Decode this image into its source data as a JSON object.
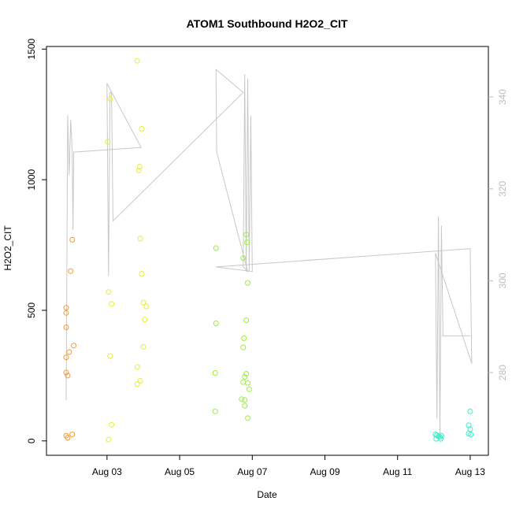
{
  "chart_data": {
    "type": "scatter",
    "title": "ATOM1 Southbound H2O2_CIT",
    "xlabel": "Date",
    "ylabel": "H2O2_CIT",
    "x_range_days": [
      "2019-08-01T08:00",
      "2019-08-13T12:00"
    ],
    "ylim": [
      -55,
      1510
    ],
    "y2lim": [
      262,
      351
    ],
    "x_ticks": [
      {
        "date": "2019-08-03",
        "label": "Aug 03"
      },
      {
        "date": "2019-08-05",
        "label": "Aug 05"
      },
      {
        "date": "2019-08-07",
        "label": "Aug 07"
      },
      {
        "date": "2019-08-09",
        "label": "Aug 09"
      },
      {
        "date": "2019-08-11",
        "label": "Aug 11"
      },
      {
        "date": "2019-08-13",
        "label": "Aug 13"
      }
    ],
    "y_ticks": [
      {
        "value": 0,
        "label": "0"
      },
      {
        "value": 500,
        "label": "500"
      },
      {
        "value": 1000,
        "label": "1000"
      },
      {
        "value": 1500,
        "label": "1500"
      }
    ],
    "y2_ticks": [
      {
        "value": 280,
        "label": "280"
      },
      {
        "value": 300,
        "label": "300"
      },
      {
        "value": 320,
        "label": "320"
      },
      {
        "value": 340,
        "label": "340"
      }
    ],
    "grid": false,
    "legend": "none",
    "line_color": "#c8c8c8",
    "points": [
      {
        "x": "2019-08-01T21:00",
        "y": 510,
        "color": "#f39c37"
      },
      {
        "x": "2019-08-01T21:00",
        "y": 490,
        "color": "#f39c37"
      },
      {
        "x": "2019-08-01T21:00",
        "y": 435,
        "color": "#f39c37"
      },
      {
        "x": "2019-08-01T21:00",
        "y": 320,
        "color": "#f39c37"
      },
      {
        "x": "2019-08-01T21:00",
        "y": 262,
        "color": "#f39c37"
      },
      {
        "x": "2019-08-01T22:00",
        "y": 250,
        "color": "#f39c37"
      },
      {
        "x": "2019-08-01T21:00",
        "y": 20,
        "color": "#f39c37"
      },
      {
        "x": "2019-08-01T22:00",
        "y": 12,
        "color": "#f39c37"
      },
      {
        "x": "2019-08-01T23:00",
        "y": 340,
        "color": "#f39c37"
      },
      {
        "x": "2019-08-02T01:00",
        "y": 770,
        "color": "#f39c37"
      },
      {
        "x": "2019-08-02T00:00",
        "y": 650,
        "color": "#f39c37"
      },
      {
        "x": "2019-08-02T02:00",
        "y": 365,
        "color": "#f39c37"
      },
      {
        "x": "2019-08-02T01:00",
        "y": 25,
        "color": "#f39c37"
      },
      {
        "x": "2019-08-03T00:30",
        "y": 1145,
        "color": "#e6ee3a"
      },
      {
        "x": "2019-08-03T02:00",
        "y": 1310,
        "color": "#e6ee3a"
      },
      {
        "x": "2019-08-03T01:00",
        "y": 570,
        "color": "#e6ee3a"
      },
      {
        "x": "2019-08-03T03:00",
        "y": 525,
        "color": "#e6ee3a"
      },
      {
        "x": "2019-08-03T02:00",
        "y": 325,
        "color": "#e6ee3a"
      },
      {
        "x": "2019-08-03T03:00",
        "y": 62,
        "color": "#e6ee3a"
      },
      {
        "x": "2019-08-03T01:00",
        "y": 5,
        "color": "#e6ee3a"
      },
      {
        "x": "2019-08-03T20:00",
        "y": 1455,
        "color": "#e6ee3a"
      },
      {
        "x": "2019-08-03T23:00",
        "y": 1195,
        "color": "#e6ee3a"
      },
      {
        "x": "2019-08-03T21:00",
        "y": 1035,
        "color": "#e6ee3a"
      },
      {
        "x": "2019-08-03T21:30",
        "y": 1050,
        "color": "#e6ee3a"
      },
      {
        "x": "2019-08-03T22:00",
        "y": 775,
        "color": "#e6ee3a"
      },
      {
        "x": "2019-08-03T23:00",
        "y": 640,
        "color": "#e6ee3a"
      },
      {
        "x": "2019-08-04T00:00",
        "y": 530,
        "color": "#e6ee3a"
      },
      {
        "x": "2019-08-04T02:00",
        "y": 515,
        "color": "#e6ee3a"
      },
      {
        "x": "2019-08-04T01:00",
        "y": 465,
        "color": "#e6ee3a"
      },
      {
        "x": "2019-08-04T00:00",
        "y": 360,
        "color": "#e6ee3a"
      },
      {
        "x": "2019-08-03T20:00",
        "y": 283,
        "color": "#e6ee3a"
      },
      {
        "x": "2019-08-03T22:00",
        "y": 230,
        "color": "#e6ee3a"
      },
      {
        "x": "2019-08-03T20:00",
        "y": 218,
        "color": "#e6ee3a"
      },
      {
        "x": "2019-08-06T00:00",
        "y": 738,
        "color": "#9cf03c"
      },
      {
        "x": "2019-08-06T00:00",
        "y": 450,
        "color": "#9cf03c"
      },
      {
        "x": "2019-08-05T23:30",
        "y": 260,
        "color": "#9cf03c"
      },
      {
        "x": "2019-08-05T23:30",
        "y": 113,
        "color": "#9cf03c"
      },
      {
        "x": "2019-08-06T18:00",
        "y": 700,
        "color": "#9cf03c"
      },
      {
        "x": "2019-08-06T20:00",
        "y": 790,
        "color": "#9cf03c"
      },
      {
        "x": "2019-08-06T20:30",
        "y": 760,
        "color": "#9cf03c"
      },
      {
        "x": "2019-08-06T21:00",
        "y": 605,
        "color": "#9cf03c"
      },
      {
        "x": "2019-08-06T20:00",
        "y": 462,
        "color": "#9cf03c"
      },
      {
        "x": "2019-08-06T18:30",
        "y": 393,
        "color": "#9cf03c"
      },
      {
        "x": "2019-08-06T18:00",
        "y": 358,
        "color": "#9cf03c"
      },
      {
        "x": "2019-08-06T20:00",
        "y": 257,
        "color": "#9cf03c"
      },
      {
        "x": "2019-08-06T19:00",
        "y": 245,
        "color": "#9cf03c"
      },
      {
        "x": "2019-08-06T18:00",
        "y": 225,
        "color": "#9cf03c"
      },
      {
        "x": "2019-08-06T21:00",
        "y": 222,
        "color": "#9cf03c"
      },
      {
        "x": "2019-08-06T22:00",
        "y": 198,
        "color": "#9cf03c"
      },
      {
        "x": "2019-08-06T17:00",
        "y": 160,
        "color": "#9cf03c"
      },
      {
        "x": "2019-08-06T19:00",
        "y": 157,
        "color": "#9cf03c"
      },
      {
        "x": "2019-08-06T19:00",
        "y": 135,
        "color": "#9cf03c"
      },
      {
        "x": "2019-08-06T21:00",
        "y": 87,
        "color": "#9cf03c"
      },
      {
        "x": "2019-08-12T01:00",
        "y": 25,
        "color": "#37efc6"
      },
      {
        "x": "2019-08-12T02:00",
        "y": 22,
        "color": "#37efc6"
      },
      {
        "x": "2019-08-12T03:00",
        "y": 18,
        "color": "#37efc6"
      },
      {
        "x": "2019-08-12T04:00",
        "y": 15,
        "color": "#37efc6"
      },
      {
        "x": "2019-08-12T01:30",
        "y": 8,
        "color": "#37efc6"
      },
      {
        "x": "2019-08-12T05:00",
        "y": 20,
        "color": "#37efc6"
      },
      {
        "x": "2019-08-12T04:30",
        "y": 8,
        "color": "#37efc6"
      },
      {
        "x": "2019-08-13T00:00",
        "y": 113,
        "color": "#37efc6"
      },
      {
        "x": "2019-08-12T23:00",
        "y": 60,
        "color": "#37efc6"
      },
      {
        "x": "2019-08-13T00:00",
        "y": 45,
        "color": "#37efc6"
      },
      {
        "x": "2019-08-12T23:00",
        "y": 28,
        "color": "#37efc6"
      },
      {
        "x": "2019-08-13T00:30",
        "y": 25,
        "color": "#37efc6"
      }
    ],
    "secondary_line": [
      {
        "x": "2019-08-01T21:00",
        "y2": 274
      },
      {
        "x": "2019-08-01T22:00",
        "y2": 336
      },
      {
        "x": "2019-08-01T23:00",
        "y2": 323
      },
      {
        "x": "2019-08-02T00:00",
        "y2": 335
      },
      {
        "x": "2019-08-02T01:00",
        "y2": 328
      },
      {
        "x": "2019-08-02T01:30",
        "y2": 311
      },
      {
        "x": "2019-08-02T02:00",
        "y2": 328
      },
      {
        "x": "2019-08-03T22:00",
        "y2": 329
      },
      {
        "x": "2019-08-03T22:30",
        "y2": 329
      },
      {
        "x": "2019-08-03T00:00",
        "y2": 343
      },
      {
        "x": "2019-08-03T01:00",
        "y2": 301
      },
      {
        "x": "2019-08-03T02:00",
        "y2": 341
      },
      {
        "x": "2019-08-03T03:00",
        "y2": 341
      },
      {
        "x": "2019-08-03T04:00",
        "y2": 313
      },
      {
        "x": "2019-08-06T18:00",
        "y2": 341
      },
      {
        "x": "2019-08-06T00:00",
        "y2": 346
      },
      {
        "x": "2019-08-06T00:30",
        "y2": 328
      },
      {
        "x": "2019-08-06T21:00",
        "y2": 302
      },
      {
        "x": "2019-08-06T18:00",
        "y2": 303
      },
      {
        "x": "2019-08-06T19:00",
        "y2": 345
      },
      {
        "x": "2019-08-06T20:00",
        "y2": 302
      },
      {
        "x": "2019-08-06T21:00",
        "y2": 344
      },
      {
        "x": "2019-08-06T22:00",
        "y2": 302
      },
      {
        "x": "2019-08-06T23:00",
        "y2": 336
      },
      {
        "x": "2019-08-07T00:00",
        "y2": 302
      },
      {
        "x": "2019-08-06T00:00",
        "y2": 303
      },
      {
        "x": "2019-08-13T00:00",
        "y2": 307
      },
      {
        "x": "2019-08-13T01:00",
        "y2": 282
      },
      {
        "x": "2019-08-12T01:00",
        "y2": 306
      },
      {
        "x": "2019-08-12T02:00",
        "y2": 270
      },
      {
        "x": "2019-08-12T03:00",
        "y2": 314
      },
      {
        "x": "2019-08-12T04:00",
        "y2": 266
      },
      {
        "x": "2019-08-12T05:00",
        "y2": 312
      },
      {
        "x": "2019-08-12T06:00",
        "y2": 288
      },
      {
        "x": "2019-08-13T00:00",
        "y2": 288
      }
    ]
  }
}
